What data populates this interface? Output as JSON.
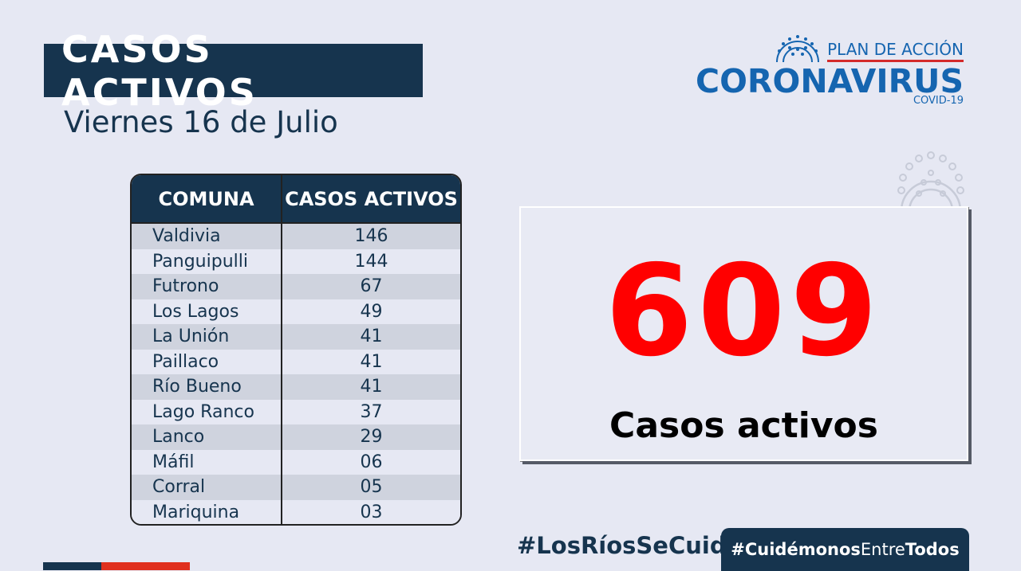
{
  "header": {
    "title": "CASOS ACTIVOS",
    "date": "Viernes 16 de Julio"
  },
  "logo": {
    "line1": "PLAN DE ACCIÓN",
    "line2": "CORONAVIRUS",
    "line3": "COVID-19",
    "icon": "virus-icon"
  },
  "table": {
    "headers": [
      "COMUNA",
      "CASOS ACTIVOS"
    ],
    "rows": [
      {
        "comuna": "Valdivia",
        "casos": "146"
      },
      {
        "comuna": "Panguipulli",
        "casos": "144"
      },
      {
        "comuna": "Futrono",
        "casos": "67"
      },
      {
        "comuna": "Los Lagos",
        "casos": "49"
      },
      {
        "comuna": "La Unión",
        "casos": "41"
      },
      {
        "comuna": "Paillaco",
        "casos": "41"
      },
      {
        "comuna": "Río Bueno",
        "casos": "41"
      },
      {
        "comuna": "Lago Ranco",
        "casos": "37"
      },
      {
        "comuna": "Lanco",
        "casos": "29"
      },
      {
        "comuna": "Máfil",
        "casos": "06"
      },
      {
        "comuna": "Corral",
        "casos": "05"
      },
      {
        "comuna": "Mariquina",
        "casos": "03"
      }
    ]
  },
  "total": {
    "number": "609",
    "label": "Casos activos"
  },
  "footer": {
    "hashtag_rios": "#LosRíosSeCuida",
    "hashtag_cuidemonos_a": "#Cuidémonos",
    "hashtag_cuidemonos_b": "Entre",
    "hashtag_cuidemonos_c": "Todos"
  },
  "colors": {
    "navy": "#16344e",
    "brand_blue": "#1565b0",
    "accent_red": "#ff0000",
    "stripe_red": "#e0301e"
  }
}
